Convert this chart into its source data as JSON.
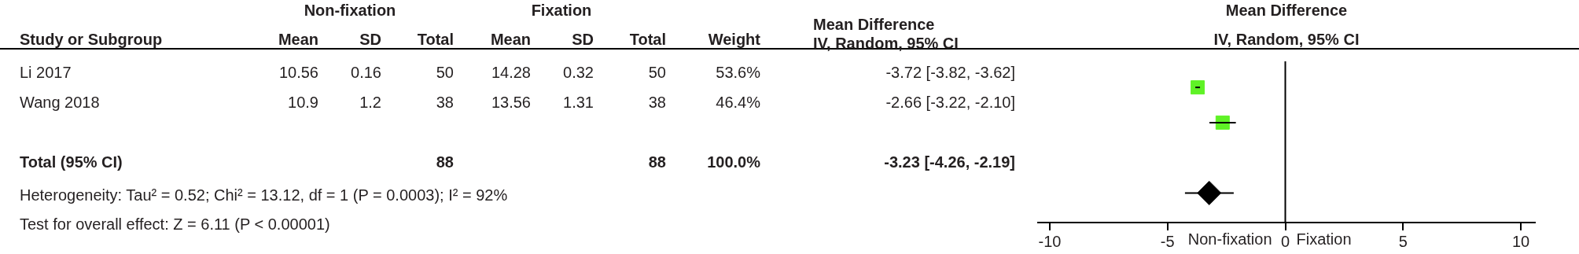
{
  "chart_data": [
    {
      "type": "other",
      "categories": [
        "Study or Subgroup",
        "Mean",
        "SD",
        "Total",
        "Mean",
        "SD",
        "Total",
        "Weight",
        "Mean Difference\nIV, Random, 95% CI"
      ],
      "y_categories": [
        "Li 2017",
        "Wang 2018",
        null,
        "Total (95% CI)"
      ],
      "cell_labels": [
        [
          "10.56",
          "0.16",
          "50",
          "14.28",
          "0.32",
          "50",
          "53.6%",
          "-3.72 [-3.82, -3.62]"
        ],
        [
          "10.9",
          "1.2",
          "38",
          "13.56",
          "1.31",
          "38",
          "46.4%",
          "-2.66 [-3.22, -2.10]"
        ],
        [
          null,
          null,
          null,
          null,
          null,
          null,
          null,
          null
        ],
        [
          null,
          null,
          "88",
          null,
          null,
          "88",
          "100.0%",
          "-3.23 [-4.26, -2.19]"
        ]
      ],
      "annotations": [
        "Non-fixation",
        "Fixation",
        "Heterogeneity: Tau² = 0.52; Chi² = 13.12, df = 1 (P = 0.0003); I² = 92%",
        "Test for overall effect: Z = 6.11 (P < 0.00001)"
      ]
    },
    {
      "type": "scatter",
      "orientation": "horizontal",
      "title": "Mean Difference",
      "subtitle": "IV, Random, 95% CI",
      "categories": [
        null,
        null,
        null,
        null
      ],
      "series": [
        {
          "color": "#5ff226",
          "marker": "square",
          "values": [
            -3.72,
            -2.66,
            null,
            null
          ],
          "errors": [
            [
              -3.82,
              -3.62
            ],
            [
              -3.22,
              -2.1
            ],
            null,
            null
          ]
        },
        {
          "color": "#000000",
          "marker": "diamond",
          "values": [
            null,
            null,
            null,
            -3.23
          ],
          "errors": [
            null,
            null,
            null,
            [
              -4.26,
              -2.19
            ]
          ]
        }
      ],
      "xlim": [
        -10.5,
        10.6
      ],
      "xticks": [
        -10,
        -5,
        0,
        5,
        10
      ],
      "tick_labels": "x",
      "grid": false,
      "ref_lines": [
        {
          "axis": "x",
          "value": 0
        }
      ],
      "annotations": [
        "Non-fixation",
        "Fixation"
      ]
    }
  ]
}
